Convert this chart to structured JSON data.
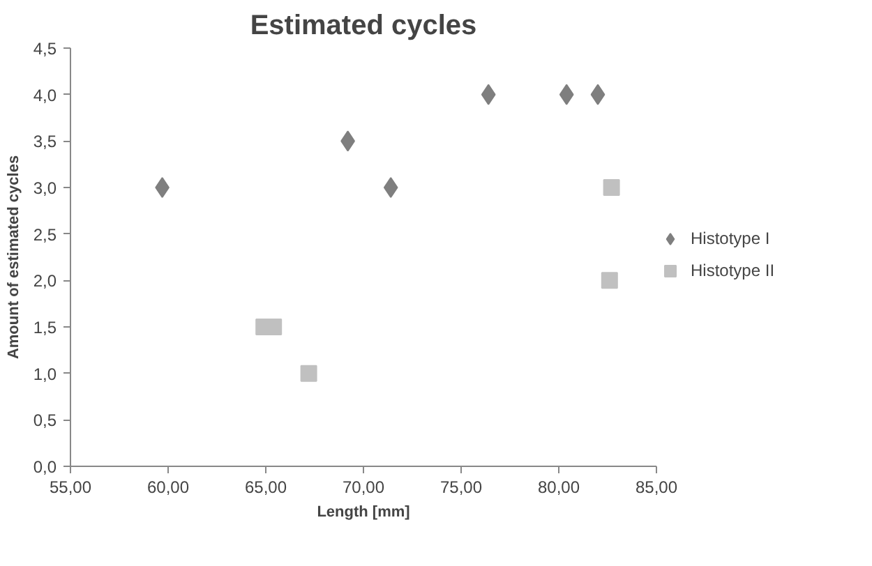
{
  "chart_data": {
    "type": "scatter",
    "title": "Estimated cycles",
    "xlabel": "Length [mm]",
    "ylabel": "Amount of estimated cycles",
    "xlim": [
      55,
      85
    ],
    "xticks": [
      {
        "value": 55,
        "label": "55,00"
      },
      {
        "value": 60,
        "label": "60,00"
      },
      {
        "value": 65,
        "label": "65,00"
      },
      {
        "value": 70,
        "label": "70,00"
      },
      {
        "value": 75,
        "label": "75,00"
      },
      {
        "value": 80,
        "label": "80,00"
      },
      {
        "value": 85,
        "label": "85,00"
      }
    ],
    "ylim": [
      0,
      4.5
    ],
    "yticks": [
      {
        "value": 0,
        "label": "0,0"
      },
      {
        "value": 0.5,
        "label": "0,5"
      },
      {
        "value": 1,
        "label": "1,0"
      },
      {
        "value": 1.5,
        "label": "1,5"
      },
      {
        "value": 2,
        "label": "2,0"
      },
      {
        "value": 2.5,
        "label": "2,5"
      },
      {
        "value": 3,
        "label": "3,0"
      },
      {
        "value": 3.5,
        "label": "3,5"
      },
      {
        "value": 4,
        "label": "4,0"
      },
      {
        "value": 4.5,
        "label": "4,5"
      }
    ],
    "grid": false,
    "legend": "right",
    "series": [
      {
        "name": "Histotype I",
        "color": "#7f7f7f",
        "marker": "diamond",
        "x": [
          59.7,
          69.2,
          71.4,
          76.4,
          80.4,
          82.0
        ],
        "values": [
          3,
          3.5,
          3,
          4,
          4,
          4
        ]
      },
      {
        "name": "Histotype II",
        "color": "#c0c0c0",
        "marker": "square",
        "x": [
          64.9,
          65.4,
          67.2,
          82.7,
          82.6
        ],
        "values": [
          1.5,
          1.5,
          1,
          3,
          2
        ]
      }
    ]
  }
}
